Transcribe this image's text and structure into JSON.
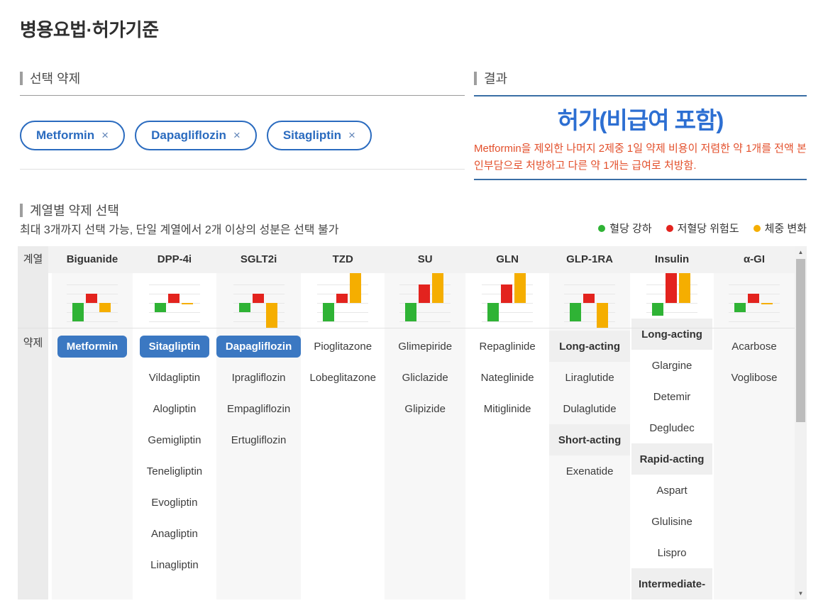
{
  "page": {
    "title": "병용요법·허가기준"
  },
  "theme": {
    "chip_blue": "#2a6bbf",
    "button_blue": "#3b78c2",
    "verdict_blue": "#2d6fd2",
    "line_blue": "#3a6ea5",
    "warning_red": "#e34f2b"
  },
  "selected_drugs": {
    "section_title": "선택 약제",
    "remove_symbol": "×",
    "chips": [
      {
        "label": "Metformin"
      },
      {
        "label": "Dapagliflozin"
      },
      {
        "label": "Sitagliptin"
      }
    ]
  },
  "result": {
    "section_title": "결과",
    "verdict": "허가(비급여 포함)",
    "description": "Metformin을 제외한 나머지 2제중 1일 약제 비용이 저렴한 약 1개를 전액 본인부담으로 처방하고 다른 약 1개는 급여로 처방함."
  },
  "class_selection": {
    "section_title": "계열별 약제 선택",
    "note": "최대 3개까지 선택 가능, 단일 계열에서 2개 이상의 성분은 선택 불가",
    "legend": [
      {
        "label": "혈당 강하",
        "color": "#2fb335"
      },
      {
        "label": "저혈당 위험도",
        "color": "#e3231e"
      },
      {
        "label": "체중 변화",
        "color": "#f5ae00"
      }
    ],
    "row_headers": {
      "class": "계열",
      "drug": "약제"
    },
    "columns": [
      {
        "name": "Biguanide",
        "chart": {
          "green": -2,
          "red": 1,
          "yellow": -1
        },
        "items": [
          {
            "label": "Metformin",
            "selected": true
          }
        ]
      },
      {
        "name": "DPP-4i",
        "chart": {
          "green": -1,
          "red": 1,
          "yellow": -0.18
        },
        "items": [
          {
            "label": "Sitagliptin",
            "selected": true
          },
          {
            "label": "Vildagliptin"
          },
          {
            "label": "Alogliptin"
          },
          {
            "label": "Gemigliptin"
          },
          {
            "label": "Teneligliptin"
          },
          {
            "label": "Evogliptin"
          },
          {
            "label": "Anagliptin"
          },
          {
            "label": "Linagliptin"
          }
        ]
      },
      {
        "name": "SGLT2i",
        "chart": {
          "green": -1,
          "red": 1,
          "yellow": -2.7
        },
        "items": [
          {
            "label": "Dapagliflozin",
            "selected": true
          },
          {
            "label": "Ipragliflozin"
          },
          {
            "label": "Empagliflozin"
          },
          {
            "label": "Ertugliflozin"
          }
        ]
      },
      {
        "name": "TZD",
        "chart": {
          "green": -2,
          "red": 1,
          "yellow": 3.3
        },
        "items": [
          {
            "label": "Pioglitazone"
          },
          {
            "label": "Lobeglitazone"
          }
        ]
      },
      {
        "name": "SU",
        "chart": {
          "green": -2,
          "red": 2,
          "yellow": 3.3
        },
        "items": [
          {
            "label": "Glimepiride"
          },
          {
            "label": "Gliclazide"
          },
          {
            "label": "Glipizide"
          }
        ]
      },
      {
        "name": "GLN",
        "chart": {
          "green": -2,
          "red": 2,
          "yellow": 3.3
        },
        "items": [
          {
            "label": "Repaglinide"
          },
          {
            "label": "Nateglinide"
          },
          {
            "label": "Mitiglinide"
          }
        ]
      },
      {
        "name": "GLP-1RA",
        "chart": {
          "green": -2,
          "red": 1,
          "yellow": -2.7
        },
        "items": [
          {
            "label": "Long-acting",
            "type": "group"
          },
          {
            "label": "Liraglutide"
          },
          {
            "label": "Dulaglutide"
          },
          {
            "label": "Short-acting",
            "type": "group"
          },
          {
            "label": "Exenatide"
          }
        ]
      },
      {
        "name": "Insulin",
        "chart": {
          "green": -2.7,
          "red": 3.4,
          "yellow": 3.3
        },
        "items": [
          {
            "label": "Long-acting",
            "type": "group"
          },
          {
            "label": "Glargine"
          },
          {
            "label": "Detemir"
          },
          {
            "label": "Degludec"
          },
          {
            "label": "Rapid-acting",
            "type": "group"
          },
          {
            "label": "Aspart"
          },
          {
            "label": "Glulisine"
          },
          {
            "label": "Lispro"
          },
          {
            "label": "Intermediate-",
            "type": "group"
          }
        ]
      },
      {
        "name": "α-GI",
        "chart": {
          "green": -1,
          "red": 1,
          "yellow": -0.18
        },
        "items": [
          {
            "label": "Acarbose"
          },
          {
            "label": "Voglibose"
          }
        ]
      }
    ],
    "scrollbar": {
      "up_icon": "▲",
      "down_icon": "▼"
    }
  }
}
